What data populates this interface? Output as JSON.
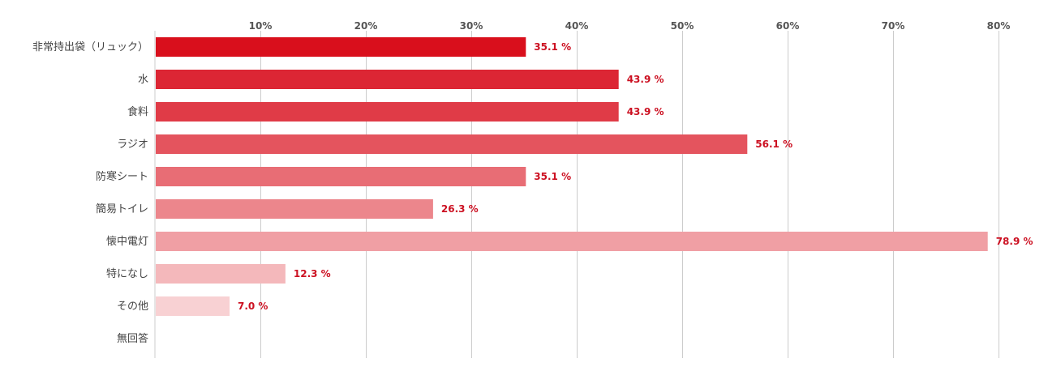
{
  "chart_data": {
    "type": "bar",
    "orientation": "horizontal",
    "categories": [
      "非常持出袋（リュック）",
      "水",
      "食料",
      "ラジオ",
      "防寒シート",
      "簡易トイレ",
      "懐中電灯",
      "特になし",
      "その他",
      "無回答"
    ],
    "values": [
      35.1,
      43.9,
      43.9,
      56.1,
      35.1,
      26.3,
      78.9,
      12.3,
      7.0,
      null
    ],
    "value_labels": [
      "35.1 %",
      "43.9 %",
      "43.9 %",
      "56.1 %",
      "35.1 %",
      "26.3 %",
      "78.9 %",
      "12.3 %",
      "7.0 %",
      ""
    ],
    "xticks": [
      10,
      20,
      30,
      40,
      50,
      60,
      70,
      80
    ],
    "xtick_labels": [
      "10%",
      "20%",
      "30%",
      "40%",
      "50%",
      "60%",
      "70%",
      "80%"
    ],
    "xlim": [
      0,
      83
    ],
    "axis_position": "top",
    "grid": true,
    "title": "",
    "xlabel": "",
    "ylabel": "",
    "bar_colors": [
      "#d90f1c",
      "#dc2634",
      "#e03b47",
      "#e4545e",
      "#e86d75",
      "#ec868c",
      "#f09fa4",
      "#f4b8bb",
      "#f8d1d3",
      "#fbe6e7"
    ],
    "grid_color": "#cccccc",
    "label_color": "#cc1122"
  }
}
